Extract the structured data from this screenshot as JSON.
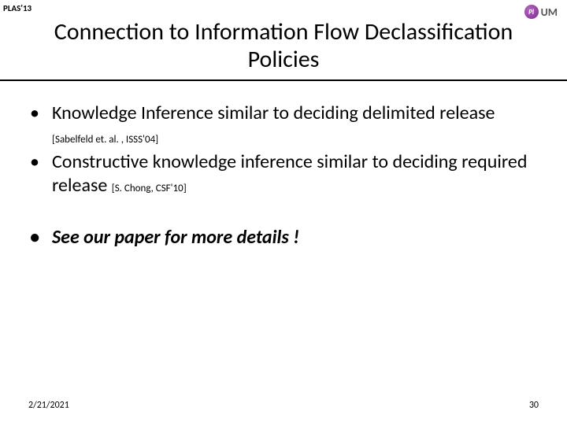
{
  "header": {
    "conference_tag": "PLAS'13",
    "logo_symbol": "Pl",
    "logo_text": "UM"
  },
  "title": {
    "line1": "Connection to Information Flow Declassification",
    "line2": "Policies"
  },
  "bullets": [
    {
      "text_a": "Knowledge Inference similar to deciding delimited release ",
      "citation": "[Sabelfeld et. al. , ISSS'04]"
    },
    {
      "text_a": "Constructive knowledge inference similar to deciding required release ",
      "citation": "[S. Chong, CSF'10]"
    }
  ],
  "emphasis_bullet": "See our paper for more details !",
  "footer": {
    "date": "2/21/2021",
    "page": "30"
  },
  "colors": {
    "text": "#000000",
    "background": "#ffffff",
    "logo_gradient_light": "#b565c4",
    "logo_gradient_dark": "#7a2a8a",
    "logo_text": "#555555"
  },
  "fonts": {
    "title_size": 30,
    "body_size": 24,
    "citation_size": 13,
    "footer_size": 12,
    "header_tag_size": 11
  }
}
